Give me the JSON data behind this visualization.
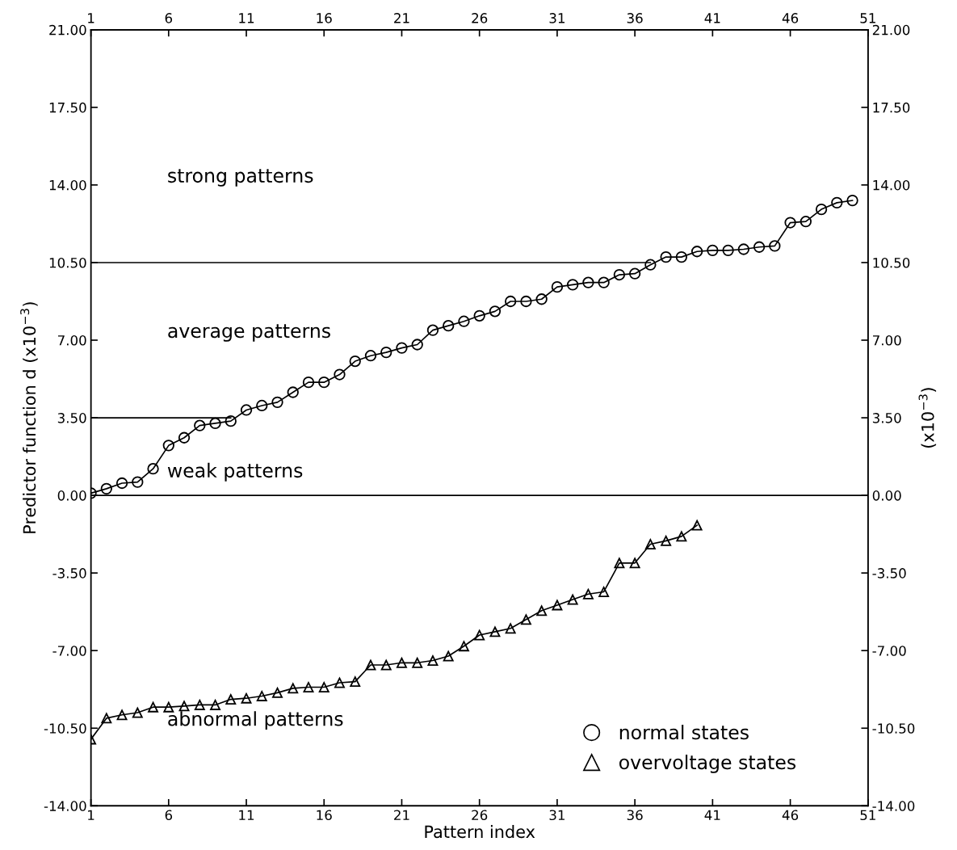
{
  "chart_data": {
    "type": "line",
    "xlabel": "Pattern index",
    "ylabel": "Predictor function d (x10$^{−3}$)",
    "y2label": "(x10$^{−3}$)",
    "x": [
      1,
      2,
      3,
      4,
      5,
      6,
      7,
      8,
      9,
      10,
      11,
      12,
      13,
      14,
      15,
      16,
      17,
      18,
      19,
      20,
      21,
      22,
      23,
      24,
      25,
      26,
      27,
      28,
      29,
      30,
      31,
      32,
      33,
      34,
      35,
      36,
      37,
      38,
      39,
      40,
      41,
      42,
      43,
      44,
      45,
      46,
      47,
      48,
      49,
      50
    ],
    "series": [
      {
        "name": "normal states",
        "color": "#000000",
        "marker": "circle",
        "values": [
          0.1,
          0.3,
          0.55,
          0.6,
          1.2,
          2.25,
          2.6,
          3.15,
          3.25,
          3.35,
          3.85,
          4.05,
          4.2,
          4.65,
          5.1,
          5.1,
          5.45,
          6.05,
          6.3,
          6.45,
          6.65,
          6.8,
          7.45,
          7.65,
          7.85,
          8.1,
          8.3,
          8.75,
          8.75,
          8.85,
          9.4,
          9.5,
          9.6,
          9.6,
          9.95,
          10.0,
          10.4,
          10.75,
          10.75,
          11.0,
          11.05,
          11.05,
          11.1,
          11.2,
          11.25,
          12.3,
          12.35,
          12.9,
          13.2,
          13.3
        ]
      },
      {
        "name": "overvoltage states",
        "color": "#000000",
        "marker": "triangle",
        "x": [
          1,
          2,
          3,
          4,
          5,
          6,
          7,
          8,
          9,
          10,
          11,
          12,
          13,
          14,
          15,
          16,
          17,
          18,
          19,
          20,
          21,
          22,
          23,
          24,
          25,
          26,
          27,
          28,
          29,
          30,
          31,
          32,
          33,
          34,
          35,
          36,
          37,
          38,
          39,
          40
        ],
        "values": [
          -11.0,
          -10.05,
          -9.9,
          -9.8,
          -9.55,
          -9.55,
          -9.5,
          -9.45,
          -9.45,
          -9.2,
          -9.15,
          -9.05,
          -8.9,
          -8.7,
          -8.65,
          -8.65,
          -8.45,
          -8.4,
          -7.65,
          -7.65,
          -7.55,
          -7.55,
          -7.45,
          -7.25,
          -6.8,
          -6.3,
          -6.15,
          -6.0,
          -5.6,
          -5.2,
          -4.95,
          -4.7,
          -4.45,
          -4.35,
          -3.05,
          -3.05,
          -2.2,
          -2.05,
          -1.85,
          -1.35
        ]
      },
      {
        "color": "#000000",
        "marker": "none",
        "x": [
          1,
          10
        ],
        "values": [
          3.5,
          3.5
        ]
      },
      {
        "color": "#000000",
        "marker": "none",
        "x": [
          1,
          37
        ],
        "values": [
          10.5,
          10.5
        ]
      }
    ],
    "ref_lines": [
      {
        "axis": "y",
        "value": 0,
        "color": "#000000"
      }
    ],
    "annotations": [
      "strong patterns",
      "average patterns",
      "weak patterns",
      "abnormal patterns"
    ],
    "xlim": [
      1,
      51
    ],
    "xticks": [
      1,
      6,
      11,
      16,
      21,
      26,
      31,
      36,
      41,
      46,
      51
    ],
    "x2lim": [
      1,
      51
    ],
    "x2ticks": [
      1,
      6,
      11,
      16,
      21,
      26,
      31,
      36,
      41,
      46,
      51
    ],
    "ylim": [
      -14,
      21
    ],
    "yticks": [
      {
        "value": -14,
        "label": "-14.00"
      },
      {
        "value": -10.5,
        "label": "-10.50"
      },
      {
        "value": -7,
        "label": "-7.00"
      },
      {
        "value": -3.5,
        "label": "-3.50"
      },
      {
        "value": 0,
        "label": "0.00"
      },
      {
        "value": 3.5,
        "label": "3.50"
      },
      {
        "value": 7,
        "label": "7.00"
      },
      {
        "value": 10.5,
        "label": "10.50"
      },
      {
        "value": 14,
        "label": "14.00"
      },
      {
        "value": 17.5,
        "label": "17.50"
      },
      {
        "value": 21,
        "label": "21.00"
      }
    ],
    "y2lim": [
      -14,
      21
    ],
    "y2ticks": [
      {
        "value": -14,
        "label": "-14.00"
      },
      {
        "value": -10.5,
        "label": "-10.50"
      },
      {
        "value": -7,
        "label": "-7.00"
      },
      {
        "value": -3.5,
        "label": "-3.50"
      },
      {
        "value": 0,
        "label": "0.00"
      },
      {
        "value": 3.5,
        "label": "3.50"
      },
      {
        "value": 7,
        "label": "7.00"
      },
      {
        "value": 10.5,
        "label": "10.50"
      },
      {
        "value": 14,
        "label": "14.00"
      },
      {
        "value": 17.5,
        "label": "17.50"
      },
      {
        "value": 21,
        "label": "21.00"
      }
    ],
    "grid": false,
    "legend": "bottom right"
  }
}
